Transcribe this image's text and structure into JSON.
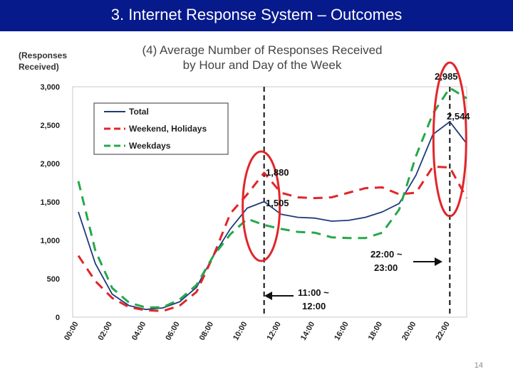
{
  "slide": {
    "title": "3.  Internet Response System – Outcomes",
    "page_number": "14",
    "title_bar_color": "#061a8c"
  },
  "chart_data": {
    "type": "line",
    "title": "(4) Average Number of Responses Received",
    "subtitle": "by Hour and Day of the Week",
    "ylabel": "(Responses Received)",
    "ylabel_lines": [
      "(Responses",
      "Received)"
    ],
    "title_lines": [
      "(4) Average Number of Responses Received",
      "by Hour and Day of the Week"
    ],
    "xlabel": "",
    "ylim": [
      0,
      3000
    ],
    "xlim": [
      0,
      23
    ],
    "yticks": [
      0,
      500,
      1000,
      1500,
      2000,
      2500,
      3000
    ],
    "ytick_labels": [
      "0",
      "500",
      "1,000",
      "1,500",
      "2,000",
      "2,500",
      "3,000"
    ],
    "xticks": [
      0,
      2,
      4,
      6,
      8,
      10,
      12,
      14,
      16,
      18,
      20,
      22
    ],
    "xtick_labels": [
      "00:00",
      "02:00",
      "04:00",
      "06:00",
      "08:00",
      "10:00",
      "12:00",
      "14:00",
      "16:00",
      "18:00",
      "20:00",
      "22:00"
    ],
    "grid": false,
    "legend_position": "top-left",
    "x": [
      0,
      1,
      2,
      3,
      4,
      5,
      6,
      7,
      8,
      9,
      10,
      11,
      12,
      13,
      14,
      15,
      16,
      17,
      18,
      19,
      20,
      21,
      22,
      23
    ],
    "series": [
      {
        "name": "Total",
        "color": "#1f3a7a",
        "dash": "solid",
        "values": [
          1370,
          700,
          300,
          150,
          100,
          120,
          200,
          390,
          800,
          1150,
          1420,
          1505,
          1340,
          1300,
          1290,
          1250,
          1260,
          1300,
          1370,
          1480,
          1850,
          2380,
          2544,
          2260
        ]
      },
      {
        "name": "Weekend, Holidays",
        "color": "#e0262a",
        "dash": "dashed",
        "values": [
          800,
          470,
          250,
          130,
          90,
          80,
          150,
          330,
          800,
          1350,
          1600,
          1880,
          1620,
          1560,
          1550,
          1560,
          1620,
          1680,
          1690,
          1600,
          1620,
          1960,
          1950,
          1550
        ]
      },
      {
        "name": "Weekdays",
        "color": "#25a84a",
        "dash": "dashed",
        "values": [
          1770,
          870,
          380,
          190,
          125,
          130,
          230,
          420,
          800,
          1080,
          1280,
          1200,
          1150,
          1110,
          1100,
          1040,
          1030,
          1030,
          1100,
          1400,
          2100,
          2650,
          2985,
          2850
        ]
      }
    ],
    "annotations": {
      "labels": [
        {
          "text": "1,880",
          "series": "Weekend, Holidays",
          "x": 11
        },
        {
          "text": "1,505",
          "series": "Total",
          "x": 11
        },
        {
          "text": "2,985",
          "series": "Weekdays",
          "x": 22
        },
        {
          "text": "2,544",
          "series": "Total",
          "x": 22
        }
      ],
      "vlines": [
        {
          "x": 11,
          "lines": [
            "11:00 ~",
            "12:00"
          ]
        },
        {
          "x": 22,
          "lines": [
            "22:00 ~",
            "23:00"
          ]
        }
      ],
      "highlight_color": "#e0262a"
    }
  }
}
